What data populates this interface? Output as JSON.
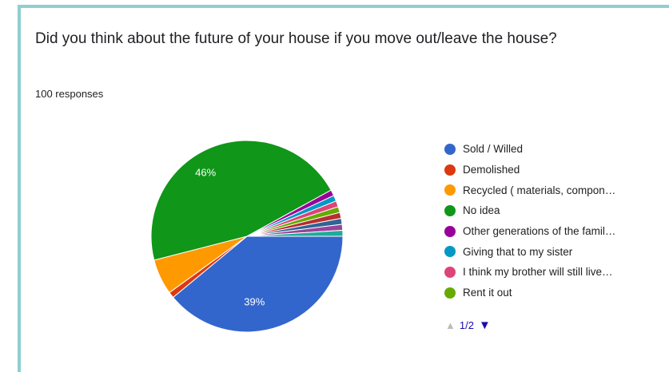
{
  "question": "Did you think about the future of your house if you move out/leave the house?",
  "response_count": "100 responses",
  "pager": {
    "text": "1/2",
    "up_icon": "triangle-up-icon",
    "down_icon": "triangle-down-icon"
  },
  "chart_data": {
    "type": "pie",
    "title": "",
    "slices": [
      {
        "label": "Sold / Willed",
        "value": 39,
        "color": "#3366cc",
        "data_label": "39%"
      },
      {
        "label": "Demolished",
        "value": 1,
        "color": "#dc3912",
        "data_label": ""
      },
      {
        "label": "Recycled ( materials, compon…",
        "value": 6,
        "color": "#ff9900",
        "data_label": ""
      },
      {
        "label": "No idea",
        "value": 46,
        "color": "#109618",
        "data_label": "46%"
      },
      {
        "label": "Other generations of the famil…",
        "value": 1,
        "color": "#990099",
        "data_label": ""
      },
      {
        "label": "Giving that to my sister",
        "value": 1,
        "color": "#0099c6",
        "data_label": ""
      },
      {
        "label": "I think my brother will still live…",
        "value": 1,
        "color": "#dd4477",
        "data_label": ""
      },
      {
        "label": "Rent it out",
        "value": 1,
        "color": "#66aa00",
        "data_label": ""
      },
      {
        "label": "",
        "value": 1,
        "color": "#b82e2e",
        "data_label": ""
      },
      {
        "label": "",
        "value": 1,
        "color": "#316395",
        "data_label": ""
      },
      {
        "label": "",
        "value": 1,
        "color": "#994499",
        "data_label": ""
      },
      {
        "label": "",
        "value": 1,
        "color": "#22aa99",
        "data_label": ""
      }
    ],
    "legend_position": "right"
  }
}
